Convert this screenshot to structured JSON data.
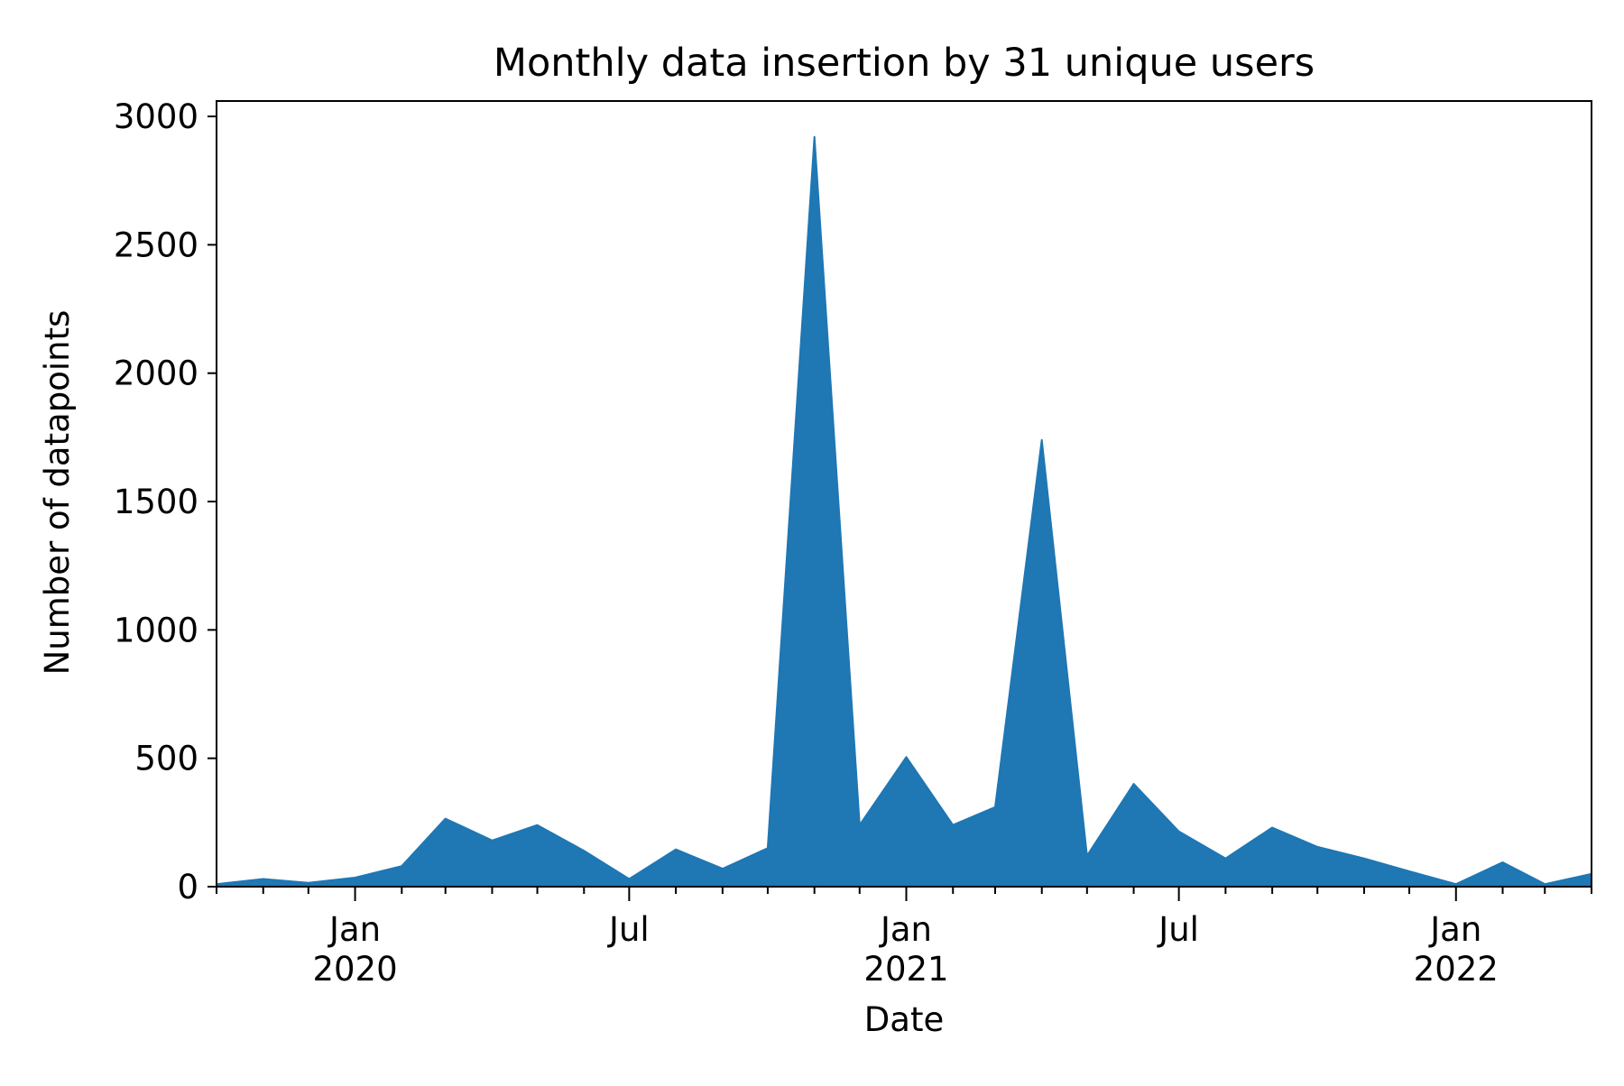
{
  "chart_data": {
    "type": "area",
    "title": "Monthly data insertion by 31 unique users",
    "xlabel": "Date",
    "ylabel": "Number of datapoints",
    "xlim": [
      "2019-10-01",
      "2022-04-01"
    ],
    "ylim": [
      0,
      3060
    ],
    "grid": false,
    "legend": "none",
    "colors": {
      "area": "#1f77b4",
      "axes": "#000000",
      "background": "#ffffff"
    },
    "x_major_ticks": [
      {
        "date": "2020-01-01",
        "label": "Jan",
        "year": "2020"
      },
      {
        "date": "2020-07-01",
        "label": "Jul",
        "year": ""
      },
      {
        "date": "2021-01-01",
        "label": "Jan",
        "year": "2021"
      },
      {
        "date": "2021-07-01",
        "label": "Jul",
        "year": ""
      },
      {
        "date": "2022-01-01",
        "label": "Jan",
        "year": "2022"
      }
    ],
    "x_minor_ticks": [
      "2019-10-01",
      "2019-11-01",
      "2019-12-01",
      "2020-02-01",
      "2020-03-01",
      "2020-04-01",
      "2020-05-01",
      "2020-06-01",
      "2020-08-01",
      "2020-09-01",
      "2020-10-01",
      "2020-11-01",
      "2020-12-01",
      "2021-02-01",
      "2021-03-01",
      "2021-04-01",
      "2021-05-01",
      "2021-06-01",
      "2021-08-01",
      "2021-09-01",
      "2021-10-01",
      "2021-11-01",
      "2021-12-01",
      "2022-02-01",
      "2022-03-01",
      "2022-04-01"
    ],
    "y_ticks": [
      0,
      500,
      1000,
      1500,
      2000,
      2500,
      3000
    ],
    "series": [
      {
        "x": [
          "2019-10-01",
          "2019-11-01",
          "2019-12-01",
          "2020-01-01",
          "2020-02-01",
          "2020-03-01",
          "2020-04-01",
          "2020-05-01",
          "2020-06-01",
          "2020-07-01",
          "2020-08-01",
          "2020-09-01",
          "2020-10-01",
          "2020-11-01",
          "2020-12-01",
          "2021-01-01",
          "2021-02-01",
          "2021-03-01",
          "2021-04-01",
          "2021-05-01",
          "2021-06-01",
          "2021-07-01",
          "2021-08-01",
          "2021-09-01",
          "2021-10-01",
          "2021-11-01",
          "2021-12-01",
          "2022-01-01",
          "2022-02-01",
          "2022-03-01",
          "2022-04-01"
        ],
        "values": [
          10,
          30,
          15,
          35,
          80,
          265,
          180,
          240,
          140,
          30,
          145,
          70,
          150,
          2920,
          240,
          505,
          240,
          310,
          1740,
          120,
          400,
          215,
          110,
          230,
          155,
          110,
          60,
          10,
          95,
          10,
          50
        ]
      }
    ]
  }
}
